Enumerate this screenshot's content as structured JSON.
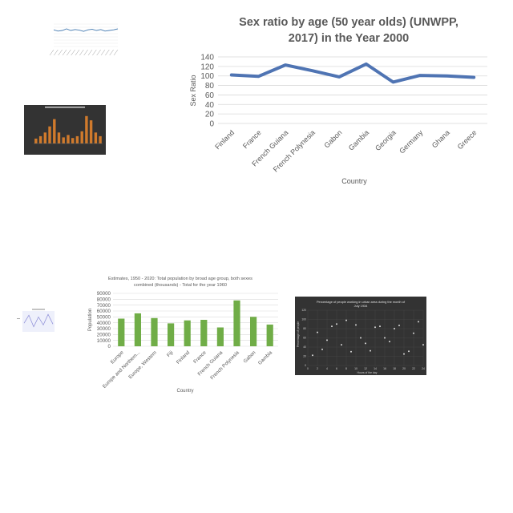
{
  "charts": {
    "thumb_line": {
      "title": "",
      "colors": {
        "line": "#4a7fb5",
        "grid": "#e6e6e6",
        "text": "#9a9a9a"
      }
    },
    "thumb_dark_bar": {
      "title": "",
      "colors": {
        "bg": "#333333",
        "bar": "#d07a2c"
      }
    },
    "main_line": {
      "title_line1": "Sex ratio by age (50 year olds) (UNWPP,",
      "title_line2": "2017) in the Year 2000",
      "ylabel": "Sex Ratio",
      "xlabel": "Country",
      "colors": {
        "line": "#4f74b3",
        "grid": "#d9d9d9",
        "text": "#595959"
      }
    },
    "tiny_line": {
      "title": "",
      "colors": {
        "line": "#8a8ad6",
        "bg": "#eef0fb"
      }
    },
    "green_bar": {
      "title_line1": "Estimates, 1950 - 2020: Total population by broad age group, both sexes",
      "title_line2": "combined (thousands) - Total for the year 1960",
      "ylabel": "Population",
      "xlabel": "Country",
      "colors": {
        "bar": "#70ad47",
        "grid": "#d9d9d9",
        "text": "#595959"
      }
    },
    "dark_scatter": {
      "title_line1": "Percentage of people working in urban area during the month of",
      "title_line2": "July 1934",
      "ylabel": "Percentage of people",
      "xlabel": "Hours of the day",
      "colors": {
        "bg": "#333333",
        "point": "#d9d9d9",
        "grid": "#4a4a4a",
        "text": "#cfcfcf"
      }
    }
  },
  "chart_data": [
    {
      "type": "line",
      "title": "",
      "x": [
        1,
        2,
        3,
        4,
        5,
        6,
        7,
        8,
        9,
        10,
        11,
        12,
        13,
        14,
        15,
        16
      ],
      "series": [
        {
          "values": [
            52,
            48,
            50,
            55,
            50,
            53,
            51,
            47,
            52,
            54,
            50,
            53,
            48,
            50,
            52,
            55
          ]
        }
      ],
      "ylim": [
        0,
        70
      ],
      "grid": true
    },
    {
      "type": "bar",
      "title": "",
      "values": [
        8,
        12,
        18,
        28,
        40,
        18,
        10,
        14,
        9,
        12,
        20,
        45,
        38,
        18,
        12
      ],
      "ylim": [
        0,
        50
      ],
      "grid": true
    },
    {
      "type": "line",
      "title": "Sex ratio by age (50 year olds) (UNWPP, 2017) in the Year 2000",
      "xlabel": "Country",
      "ylabel": "Sex Ratio",
      "categories": [
        "Finland",
        "France",
        "French Guiana",
        "French Polynesia",
        "Gabon",
        "Gambia",
        "Georgia",
        "Germany",
        "Ghana",
        "Greece"
      ],
      "series": [
        {
          "values": [
            102,
            99,
            123,
            111,
            98,
            125,
            87,
            101,
            100,
            97
          ]
        }
      ],
      "ylim": [
        0,
        140
      ],
      "yticks": [
        0,
        20,
        40,
        60,
        80,
        100,
        120,
        140
      ],
      "grid": true,
      "legend": "none"
    },
    {
      "type": "line",
      "title": "",
      "x": [
        1,
        2,
        3,
        4,
        5,
        6,
        7
      ],
      "series": [
        {
          "values": [
            40,
            85,
            20,
            75,
            30,
            90,
            35
          ]
        }
      ],
      "ylim": [
        0,
        100
      ],
      "grid": false
    },
    {
      "type": "bar",
      "title": "Estimates, 1950 - 2020: Total population by broad age group, both sexes combined (thousands) - Total for the year 1960",
      "xlabel": "Country",
      "ylabel": "Population",
      "categories": [
        "Europe",
        "Europe and Northern...",
        "Europe, Western",
        "Fiji",
        "Finland",
        "France",
        "French Guiana",
        "French Polynesia",
        "Gabon",
        "Gambia"
      ],
      "values": [
        47000,
        56000,
        48000,
        39000,
        44000,
        45000,
        32000,
        78000,
        50000,
        37000
      ],
      "ylim": [
        0,
        90000
      ],
      "yticks": [
        0,
        10000,
        20000,
        30000,
        40000,
        50000,
        60000,
        70000,
        80000,
        90000
      ],
      "grid": true,
      "legend": "none"
    },
    {
      "type": "scatter",
      "title": "Percentage of people working in urban area during the month of July 1934",
      "xlabel": "Hours of the day",
      "ylabel": "Percentage of people",
      "x": [
        1,
        2,
        3,
        4,
        5,
        6,
        7,
        8,
        9,
        10,
        11,
        12,
        13,
        14,
        15,
        16,
        17,
        18,
        19,
        20,
        21,
        22,
        23,
        24
      ],
      "y": [
        22,
        72,
        35,
        55,
        85,
        90,
        45,
        98,
        30,
        88,
        60,
        48,
        32,
        83,
        85,
        60,
        52,
        80,
        87,
        25,
        31,
        70,
        95,
        45
      ],
      "xlim": [
        0,
        24
      ],
      "ylim": [
        0,
        120
      ],
      "xticks": [
        0,
        2,
        4,
        6,
        8,
        10,
        12,
        14,
        16,
        18,
        20,
        22,
        24
      ],
      "yticks": [
        0,
        20,
        40,
        60,
        80,
        100,
        120
      ],
      "grid": true
    }
  ]
}
